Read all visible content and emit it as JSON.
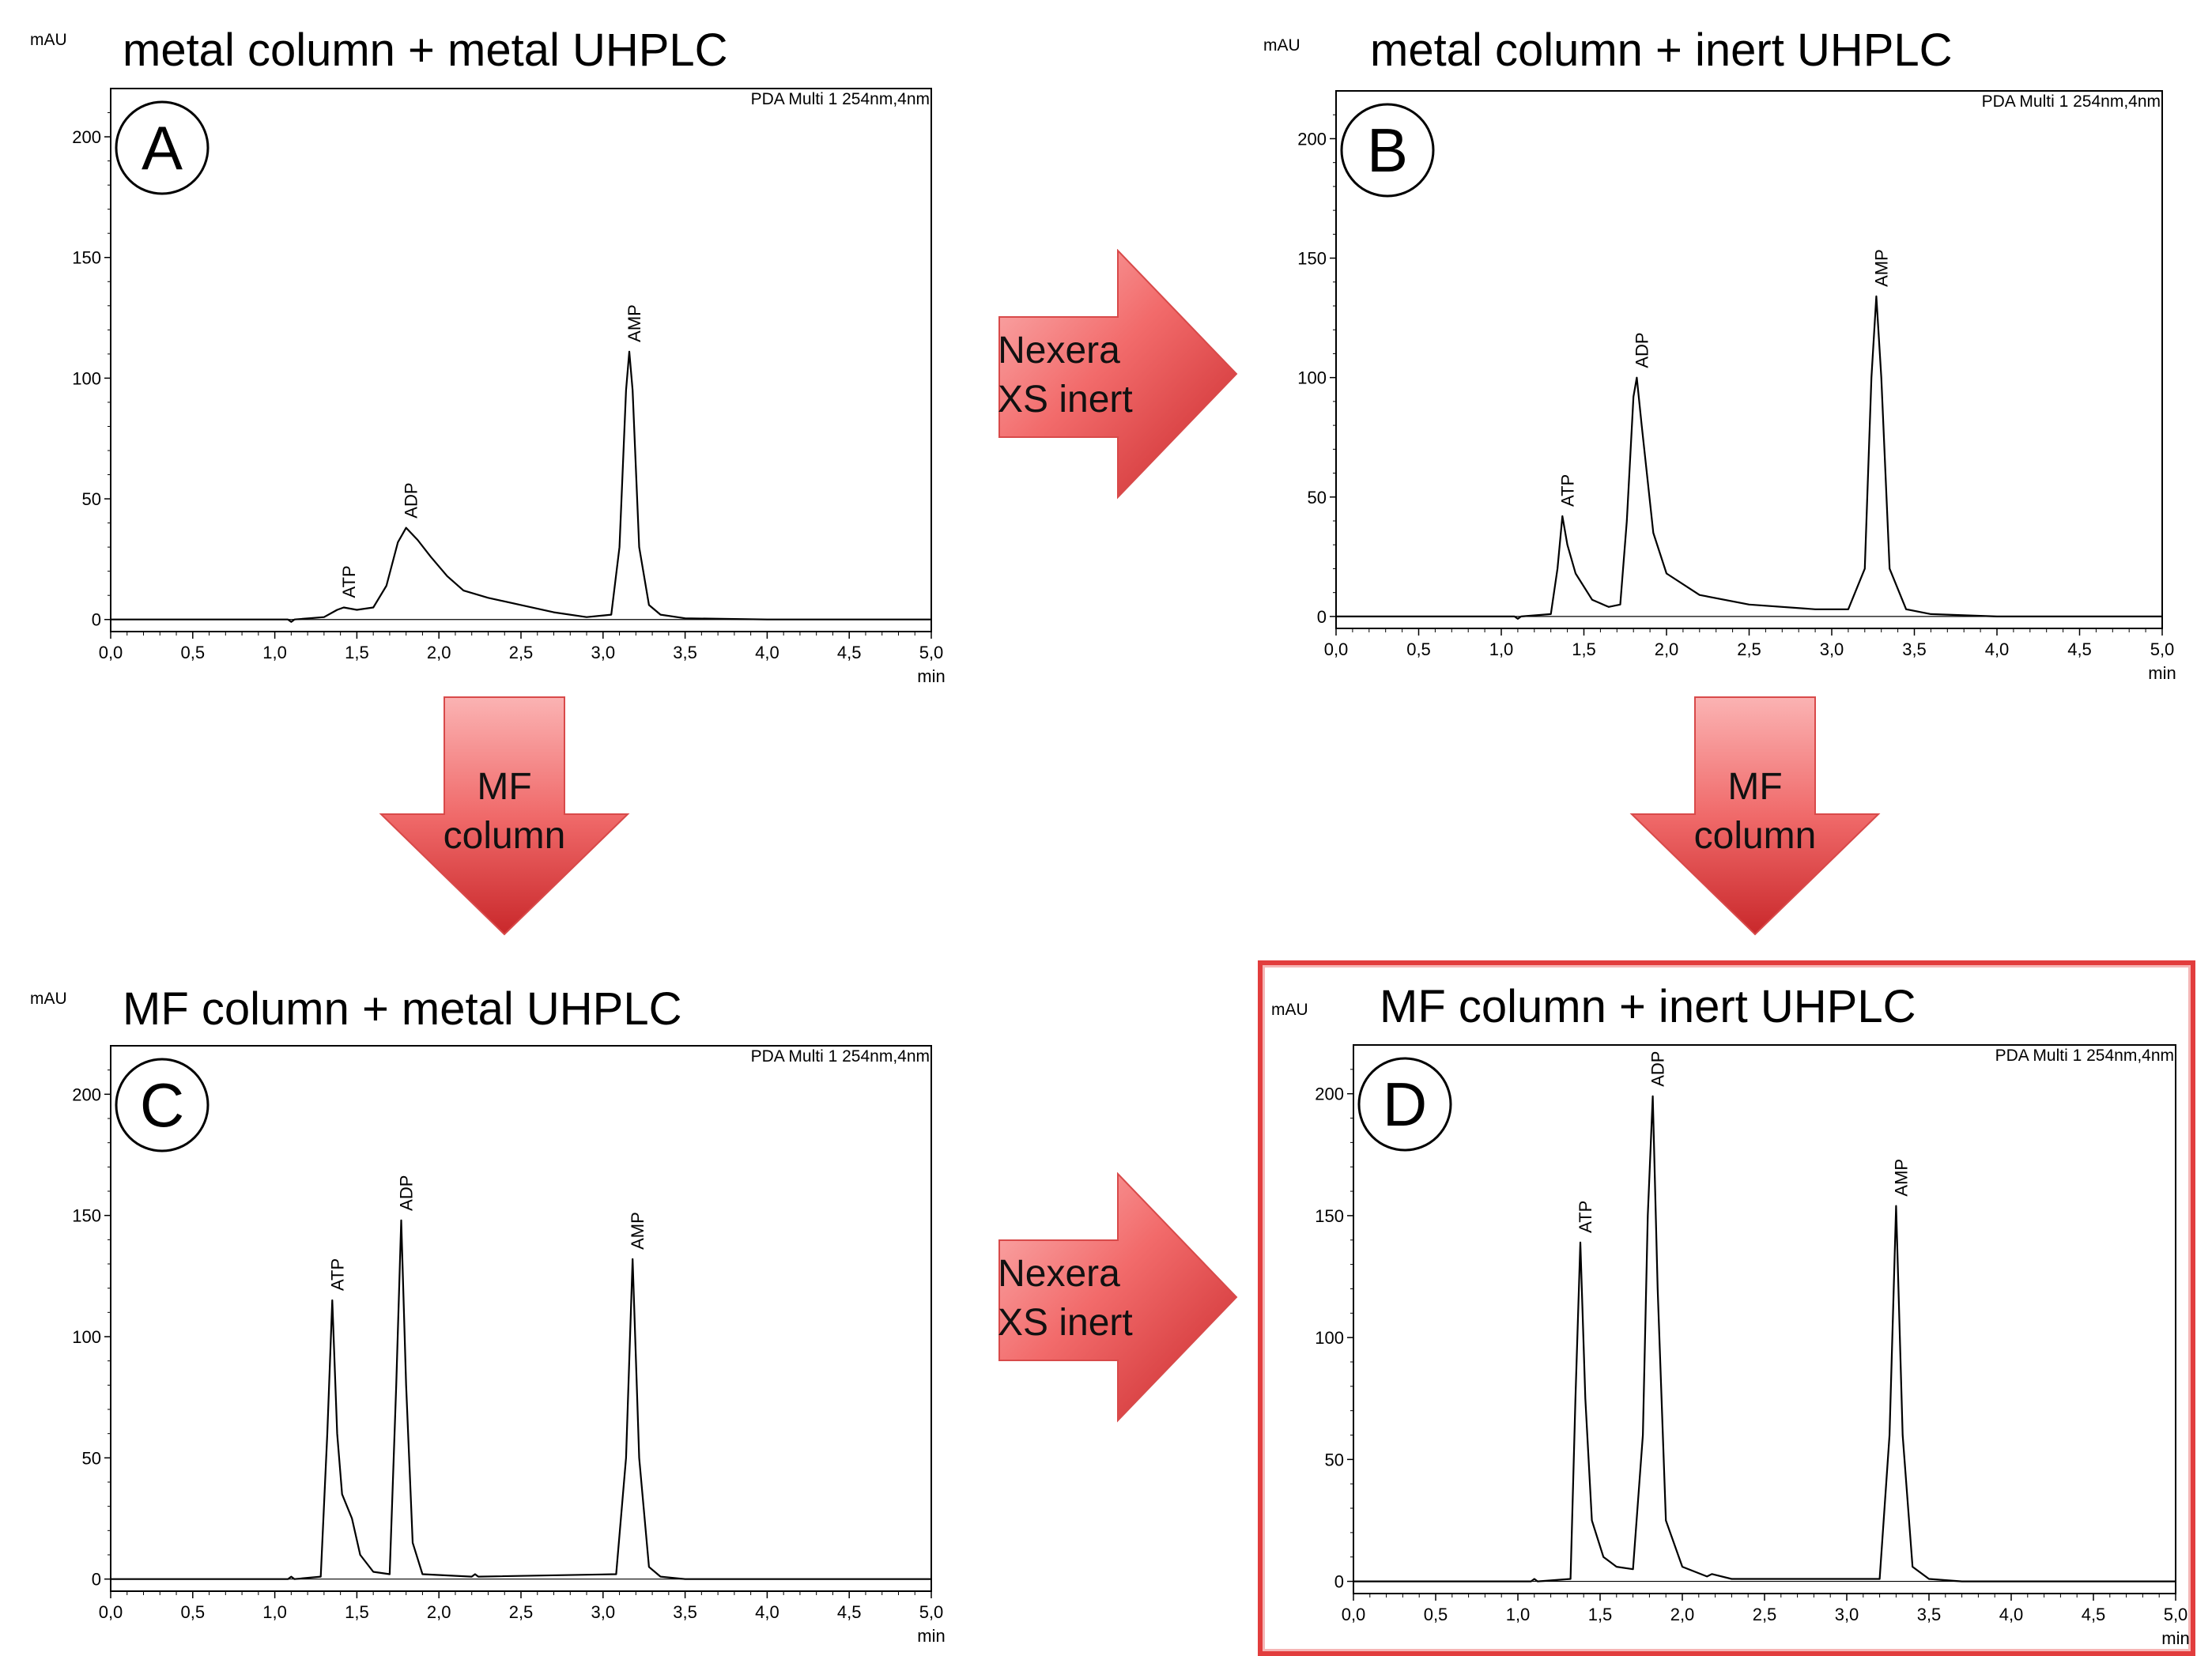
{
  "colors": {
    "trace": "#000000",
    "arrow_light": "#f9a1a1",
    "arrow_dark": "#c9282b",
    "highlight_border": "#e23d3d"
  },
  "arrows": {
    "right_top": {
      "lines": [
        "Nexera",
        "XS inert"
      ]
    },
    "down_left": {
      "lines": [
        "MF",
        "column"
      ]
    },
    "down_right": {
      "lines": [
        "MF",
        "column"
      ]
    },
    "right_bottom": {
      "lines": [
        "Nexera",
        "XS inert"
      ]
    }
  },
  "chart_data": [
    {
      "type": "line",
      "title": "metal column + metal UHPLC",
      "badge": "A",
      "legend": "PDA Multi 1 254nm,4nm",
      "ylabel": "mAU",
      "xlabel": "min",
      "xlim": [
        0,
        5
      ],
      "ylim": [
        -5,
        220
      ],
      "yticks": [
        0,
        50,
        100,
        150,
        200
      ],
      "xtick_labels": [
        "0,0",
        "0,5",
        "1,0",
        "1,5",
        "2,0",
        "2,5",
        "3,0",
        "3,5",
        "4,0",
        "4,5",
        "5,0"
      ],
      "peaks": [
        {
          "name": "ATP",
          "x": 1.42,
          "y": 5
        },
        {
          "name": "ADP",
          "x": 1.8,
          "y": 38
        },
        {
          "name": "AMP",
          "x": 3.16,
          "y": 111
        }
      ],
      "x": [
        0,
        1.0,
        1.08,
        1.1,
        1.12,
        1.3,
        1.38,
        1.42,
        1.5,
        1.6,
        1.68,
        1.75,
        1.8,
        1.87,
        1.95,
        2.05,
        2.15,
        2.3,
        2.5,
        2.7,
        2.9,
        3.05,
        3.1,
        3.14,
        3.16,
        3.18,
        3.22,
        3.28,
        3.35,
        3.5,
        4.0,
        5.0
      ],
      "y": [
        0,
        0,
        0,
        -1,
        0,
        1,
        4,
        5,
        4,
        5,
        14,
        32,
        38,
        33,
        26,
        18,
        12,
        9,
        6,
        3,
        1,
        2,
        30,
        95,
        111,
        95,
        30,
        6,
        2,
        0.5,
        0,
        0
      ]
    },
    {
      "type": "line",
      "title": "metal column + inert UHPLC",
      "badge": "B",
      "legend": "PDA Multi 1 254nm,4nm",
      "ylabel": "mAU",
      "xlabel": "min",
      "xlim": [
        0,
        5
      ],
      "ylim": [
        -5,
        220
      ],
      "yticks": [
        0,
        50,
        100,
        150,
        200
      ],
      "xtick_labels": [
        "0,0",
        "0,5",
        "1,0",
        "1,5",
        "2,0",
        "2,5",
        "3,0",
        "3,5",
        "4,0",
        "4,5",
        "5,0"
      ],
      "peaks": [
        {
          "name": "ATP",
          "x": 1.37,
          "y": 42
        },
        {
          "name": "ADP",
          "x": 1.82,
          "y": 100
        },
        {
          "name": "AMP",
          "x": 3.27,
          "y": 134
        }
      ],
      "x": [
        0,
        1.05,
        1.08,
        1.1,
        1.12,
        1.3,
        1.34,
        1.37,
        1.4,
        1.45,
        1.55,
        1.65,
        1.72,
        1.76,
        1.8,
        1.82,
        1.85,
        1.92,
        2.0,
        2.2,
        2.5,
        2.9,
        3.1,
        3.2,
        3.24,
        3.27,
        3.3,
        3.35,
        3.45,
        3.6,
        4.0,
        5.0
      ],
      "y": [
        0,
        0,
        0,
        -1,
        0,
        1,
        20,
        42,
        30,
        18,
        7,
        4,
        5,
        40,
        92,
        100,
        80,
        35,
        18,
        9,
        5,
        3,
        3,
        20,
        100,
        134,
        100,
        20,
        3,
        1,
        0,
        0
      ]
    },
    {
      "type": "line",
      "title": "MF column + metal UHPLC",
      "badge": "C",
      "legend": "PDA Multi 1 254nm,4nm",
      "ylabel": "mAU",
      "xlabel": "min",
      "xlim": [
        0,
        5
      ],
      "ylim": [
        -5,
        220
      ],
      "yticks": [
        0,
        50,
        100,
        150,
        200
      ],
      "xtick_labels": [
        "0,0",
        "0,5",
        "1,0",
        "1,5",
        "2,0",
        "2,5",
        "3,0",
        "3,5",
        "4,0",
        "4,5",
        "5,0"
      ],
      "peaks": [
        {
          "name": "ATP",
          "x": 1.35,
          "y": 115
        },
        {
          "name": "ADP",
          "x": 1.77,
          "y": 148
        },
        {
          "name": "AMP",
          "x": 3.18,
          "y": 132
        }
      ],
      "x": [
        0,
        1.05,
        1.08,
        1.1,
        1.12,
        1.28,
        1.32,
        1.35,
        1.38,
        1.41,
        1.47,
        1.52,
        1.6,
        1.7,
        1.74,
        1.77,
        1.8,
        1.84,
        1.9,
        2.2,
        2.22,
        2.24,
        3.08,
        3.14,
        3.18,
        3.22,
        3.28,
        3.35,
        3.5,
        5.0
      ],
      "y": [
        0,
        0,
        0,
        1,
        0,
        1,
        60,
        115,
        60,
        35,
        25,
        10,
        3,
        2,
        80,
        148,
        80,
        15,
        2,
        1,
        2,
        1,
        2,
        50,
        132,
        50,
        5,
        1,
        0,
        0
      ]
    },
    {
      "type": "line",
      "title": "MF column + inert UHPLC",
      "badge": "D",
      "legend": "PDA Multi 1 254nm,4nm",
      "ylabel": "mAU",
      "xlabel": "min",
      "xlim": [
        0,
        5
      ],
      "ylim": [
        -5,
        220
      ],
      "yticks": [
        0,
        50,
        100,
        150,
        200
      ],
      "xtick_labels": [
        "0,0",
        "0,5",
        "1,0",
        "1,5",
        "2,0",
        "2,5",
        "3,0",
        "3,5",
        "4,0",
        "4,5",
        "5,0"
      ],
      "peaks": [
        {
          "name": "ATP",
          "x": 1.38,
          "y": 139
        },
        {
          "name": "ADP",
          "x": 1.82,
          "y": 199
        },
        {
          "name": "AMP",
          "x": 3.3,
          "y": 154
        }
      ],
      "x": [
        0,
        1.05,
        1.08,
        1.1,
        1.12,
        1.32,
        1.35,
        1.38,
        1.41,
        1.45,
        1.52,
        1.6,
        1.7,
        1.76,
        1.79,
        1.82,
        1.85,
        1.9,
        2.0,
        2.15,
        2.18,
        2.3,
        3.2,
        3.26,
        3.3,
        3.34,
        3.4,
        3.5,
        3.7,
        5.0
      ],
      "y": [
        0,
        0,
        0,
        1,
        0,
        1,
        75,
        139,
        75,
        25,
        10,
        6,
        5,
        60,
        150,
        199,
        120,
        25,
        6,
        2,
        3,
        1,
        1,
        60,
        154,
        60,
        6,
        1,
        0,
        0
      ]
    }
  ]
}
